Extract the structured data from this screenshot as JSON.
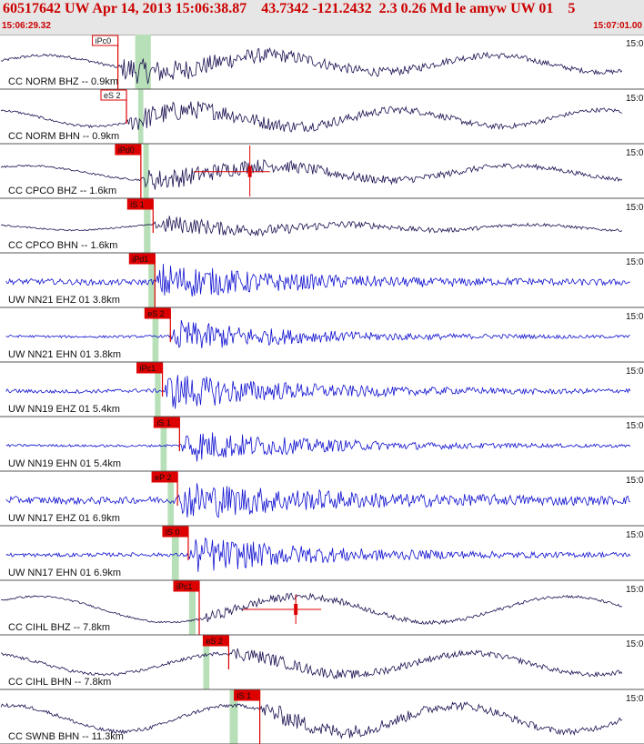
{
  "header": {
    "title": "60517642 UW Apr 14, 2013 15:06:38.87    43.7342 -121.2432  2.3 0.26 Md le amyw UW 01    5",
    "start_time": "15:06:29.32",
    "end_time": "15:07:01.00"
  },
  "colors": {
    "header_bg": "#e6e6e6",
    "header_text": "#cc0000",
    "trace_cc": "#1a1050",
    "trace_uw": "#1010d0",
    "pick": "#dd0000",
    "window": "#b8e0b8"
  },
  "chart_data": {
    "type": "line",
    "title": "",
    "xlabel": "",
    "ylabel": "",
    "x_unit": "seconds since 15:06:29.32",
    "xlim": [
      0,
      31.68
    ],
    "time_tag": "15:0",
    "traces": [
      {
        "label": "CC NORM BHZ -- 0.9km",
        "network": "CC",
        "pick": {
          "label": "iPc0",
          "time": 5.8,
          "style": "outline",
          "tall": true
        },
        "window": [
          6.65,
          7.42
        ],
        "coda_marker": null,
        "env": {
          "noise": 0.06,
          "peak": 0.55,
          "decay": 9,
          "long_amp": 0.35,
          "long_period": 11,
          "phase": 0.3
        }
      },
      {
        "label": "CC NORM BHN -- 0.9km",
        "network": "CC",
        "pick": {
          "label": "eS 2",
          "time": 6.22,
          "style": "outline",
          "tall": false
        },
        "window": [
          6.8,
          7.05
        ],
        "coda_marker": null,
        "env": {
          "noise": 0.05,
          "peak": 0.5,
          "decay": 9,
          "long_amp": 0.35,
          "long_period": 10,
          "phase": 1.8
        }
      },
      {
        "label": "CC CPCO BHZ -- 1.6km",
        "network": "CC",
        "pick": {
          "label": "iPd0",
          "time": 6.93,
          "style": "filled",
          "tall": true
        },
        "window": [
          7.05,
          7.32
        ],
        "coda_marker": {
          "time": 12.29,
          "amp": 0.05,
          "left": 9.55,
          "right": 13.28,
          "tall": true
        },
        "env": {
          "noise": 0.04,
          "peak": 0.45,
          "decay": 10,
          "long_amp": 0.3,
          "long_period": 12,
          "phase": 0.9
        }
      },
      {
        "label": "CC CPCO BHN -- 1.6km",
        "network": "CC",
        "pick": {
          "label": "iS 1",
          "time": 7.53,
          "style": "filled",
          "tall": false
        },
        "window": [
          7.08,
          7.4
        ],
        "coda_marker": null,
        "env": {
          "noise": 0.03,
          "peak": 0.4,
          "decay": 8,
          "long_amp": 0.12,
          "long_period": 9,
          "phase": 2.2
        }
      },
      {
        "label": "UW NN21 EHZ 01 3.8km",
        "network": "UW",
        "pick": {
          "label": "iPd1",
          "time": 7.62,
          "style": "filled",
          "tall": true
        },
        "window": [
          7.3,
          7.62
        ],
        "coda_marker": null,
        "env": {
          "noise": 0.12,
          "peak": 0.75,
          "decay": 6,
          "long_amp": 0.02,
          "long_period": 8,
          "phase": 0.5
        }
      },
      {
        "label": "UW NN21 EHN 01 3.8km",
        "network": "UW",
        "pick": {
          "label": "eS 2",
          "time": 8.38,
          "style": "filled",
          "tall": false
        },
        "window": [
          7.5,
          7.8
        ],
        "coda_marker": null,
        "env": {
          "noise": 0.05,
          "peak": 0.7,
          "decay": 6,
          "long_amp": 0.01,
          "long_period": 8,
          "phase": 1.1
        }
      },
      {
        "label": "UW NN19 EHZ 01 5.4km",
        "network": "UW",
        "pick": {
          "label": "iPc1",
          "time": 7.99,
          "style": "filled",
          "tall": false
        },
        "window": [
          7.62,
          7.9
        ],
        "coda_marker": null,
        "env": {
          "noise": 0.08,
          "peak": 0.8,
          "decay": 6,
          "long_amp": 0.02,
          "long_period": 8,
          "phase": 2.4
        }
      },
      {
        "label": "UW NN19 EHN 01 5.4km",
        "network": "UW",
        "pick": {
          "label": "iS 1",
          "time": 8.83,
          "style": "filled",
          "tall": false
        },
        "window": [
          7.9,
          8.2
        ],
        "coda_marker": null,
        "env": {
          "noise": 0.05,
          "peak": 0.75,
          "decay": 6,
          "long_amp": 0.01,
          "long_period": 8,
          "phase": 0.2
        }
      },
      {
        "label": "UW NN17 EHZ 01 6.9km",
        "network": "UW",
        "pick": {
          "label": "eP 2",
          "time": 8.73,
          "style": "filled",
          "tall": false
        },
        "window": [
          8.25,
          8.55
        ],
        "coda_marker": null,
        "env": {
          "noise": 0.15,
          "peak": 0.75,
          "decay": 7,
          "long_amp": 0.02,
          "long_period": 8,
          "phase": 1.5
        }
      },
      {
        "label": "UW NN17 EHN 01 6.9km",
        "network": "UW",
        "pick": {
          "label": "iS 0",
          "time": 9.26,
          "style": "filled",
          "tall": false
        },
        "window": [
          8.45,
          8.8
        ],
        "coda_marker": null,
        "env": {
          "noise": 0.08,
          "peak": 0.8,
          "decay": 6,
          "long_amp": 0.01,
          "long_period": 8,
          "phase": 2.9
        }
      },
      {
        "label": "CC CIHL BHZ -- 7.8km",
        "network": "CC",
        "pick": {
          "label": "iPc1",
          "time": 9.8,
          "style": "filled",
          "tall": true
        },
        "window": [
          9.3,
          9.62
        ],
        "coda_marker": {
          "time": 14.55,
          "amp": 0.0,
          "left": 11.95,
          "right": 15.8,
          "tall": false
        },
        "env": {
          "noise": 0.04,
          "peak": 0.2,
          "decay": 8,
          "long_amp": 0.55,
          "long_period": 13,
          "phase": 0.7
        }
      },
      {
        "label": "CC CIHL BHN -- 7.8km",
        "network": "CC",
        "pick": {
          "label": "eS 2",
          "time": 11.25,
          "style": "filled",
          "tall": false
        },
        "window": [
          10.0,
          10.3
        ],
        "coda_marker": null,
        "env": {
          "noise": 0.07,
          "peak": 0.25,
          "decay": 8,
          "long_amp": 0.45,
          "long_period": 12,
          "phase": 2.0
        }
      },
      {
        "label": "CC SWNB BHN -- 11.3km",
        "network": "CC",
        "pick": {
          "label": "iS 1",
          "time": 12.78,
          "style": "filled",
          "tall": true
        },
        "window": [
          11.3,
          11.7
        ],
        "coda_marker": null,
        "env": {
          "noise": 0.08,
          "peak": 0.35,
          "decay": 8,
          "long_amp": 0.55,
          "long_period": 11,
          "phase": 1.3
        }
      }
    ]
  }
}
